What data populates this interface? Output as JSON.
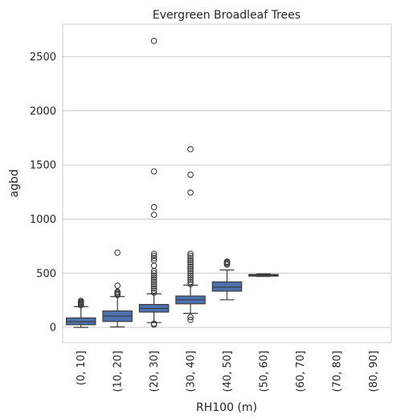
{
  "chart_data": {
    "type": "box",
    "title": "Evergreen Broadleaf Trees",
    "xlabel": "RH100 (m)",
    "ylabel": "agbd",
    "ylim": [
      -140,
      2800
    ],
    "yticks": [
      0,
      500,
      1000,
      1500,
      2000,
      2500
    ],
    "grid": true,
    "box_color": "#4c72b0",
    "line_color": "#3d3d3d",
    "categories": [
      "(0, 10]",
      "(10, 20]",
      "(20, 30]",
      "(30, 40]",
      "(40, 50]",
      "(50, 60]",
      "(60, 70]",
      "(70, 80]",
      "(80, 90]"
    ],
    "boxes": [
      {
        "category": "(0, 10]",
        "whisker_low": 0,
        "q1": 25,
        "median": 52,
        "q3": 88,
        "whisker_high": 192,
        "outliers": [
          205,
          212,
          220,
          228,
          235,
          245
        ]
      },
      {
        "category": "(10, 20]",
        "whisker_low": 5,
        "q1": 55,
        "median": 105,
        "q3": 152,
        "whisker_high": 285,
        "outliers": [
          300,
          310,
          320,
          330,
          385,
          690
        ]
      },
      {
        "category": "(20, 30]",
        "whisker_low": 45,
        "q1": 142,
        "median": 175,
        "q3": 212,
        "whisker_high": 310,
        "outliers": [
          25,
          35,
          320,
          340,
          360,
          380,
          400,
          420,
          440,
          460,
          480,
          500,
          520,
          570,
          620,
          640,
          660,
          680,
          1040,
          1110,
          1440,
          2645
        ]
      },
      {
        "category": "(30, 40]",
        "whisker_low": 130,
        "q1": 218,
        "median": 255,
        "q3": 290,
        "whisker_high": 390,
        "outliers": [
          70,
          95,
          400,
          420,
          440,
          460,
          480,
          500,
          520,
          540,
          560,
          580,
          600,
          620,
          640,
          660,
          680,
          1245,
          1410,
          1645
        ]
      },
      {
        "category": "(40, 50]",
        "whisker_low": 255,
        "q1": 335,
        "median": 372,
        "q3": 420,
        "whisker_high": 530,
        "outliers": [
          580,
          590,
          600,
          608
        ]
      },
      {
        "category": "(50, 60]",
        "whisker_low": 470,
        "q1": 477,
        "median": 482,
        "q3": 489,
        "whisker_high": 495,
        "outliers": []
      }
    ]
  }
}
